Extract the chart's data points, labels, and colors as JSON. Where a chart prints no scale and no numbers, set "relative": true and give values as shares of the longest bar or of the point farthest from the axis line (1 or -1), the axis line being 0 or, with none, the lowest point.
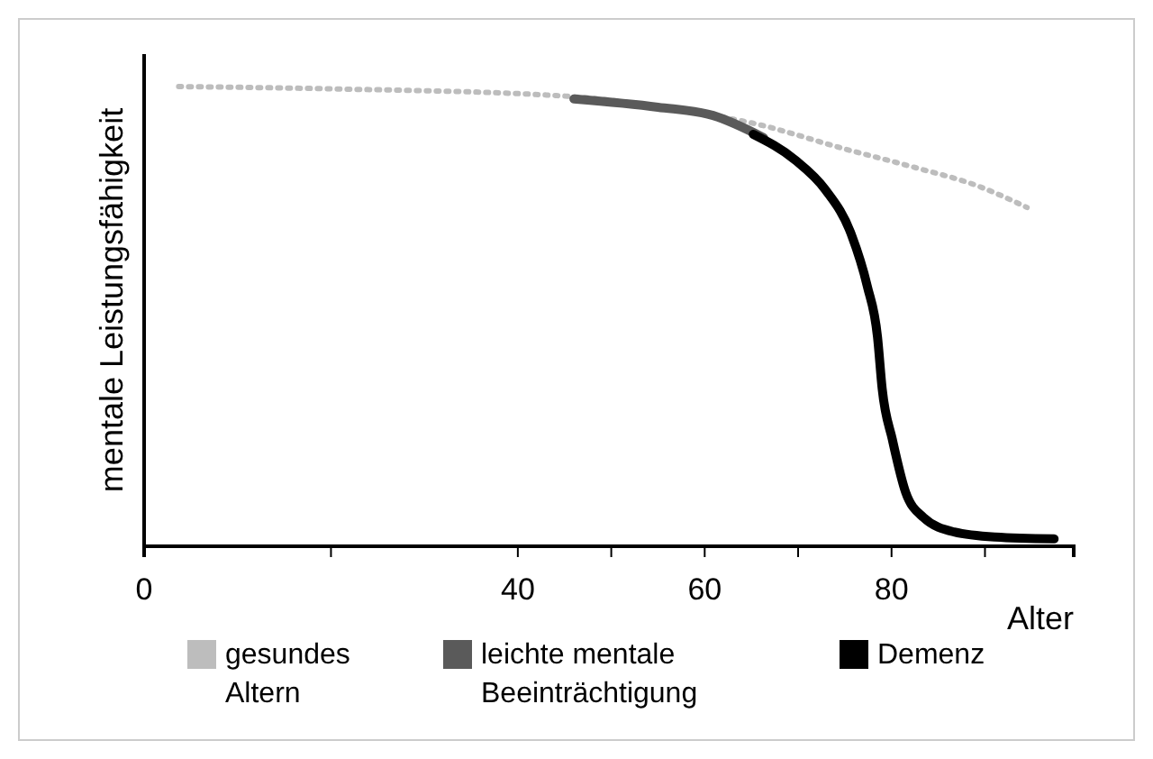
{
  "chart_data": {
    "type": "line",
    "relative": true,
    "xlabel": "Alter",
    "ylabel": "mentale Leistungsfähigkeit",
    "xlim": [
      0,
      99.5
    ],
    "xticks": [
      0,
      {
        "value": 20,
        "label": null
      },
      40,
      {
        "value": 50,
        "label": null
      },
      60,
      {
        "value": 70,
        "label": null
      },
      80,
      {
        "value": 90,
        "label": null
      }
    ],
    "legend": "bottom",
    "grid": false,
    "series": [
      {
        "name": "gesundes Altern",
        "color": "#bdbdbd",
        "line_style": "dotted",
        "x": [
          3.7,
          20,
          44.4,
          60.9,
          65.2,
          75.2,
          82.3,
          89.2,
          94.5
        ],
        "values": [
          1,
          0.995,
          0.98,
          0.937,
          0.92,
          0.863,
          0.825,
          0.784,
          0.737
        ]
      },
      {
        "name": "leichte mentale Beeinträchtigung",
        "color": "#5a5a5a",
        "line_style": "solid",
        "x": [
          46,
          55,
          60.9,
          66.3
        ],
        "values": [
          0.973,
          0.955,
          0.937,
          0.889
        ]
      },
      {
        "name": "Demenz",
        "color": "#000000",
        "line_style": "solid",
        "x": [
          65.2,
          69.7,
          72.9,
          75.7,
          77.4,
          78.5,
          79,
          80.1,
          81.5,
          83.4,
          86.7,
          91.1,
          97.4
        ],
        "values": [
          0.896,
          0.84,
          0.776,
          0.678,
          0.566,
          0.455,
          0.342,
          0.231,
          0.118,
          0.063,
          0.031,
          0.02,
          0.016
        ]
      }
    ]
  }
}
